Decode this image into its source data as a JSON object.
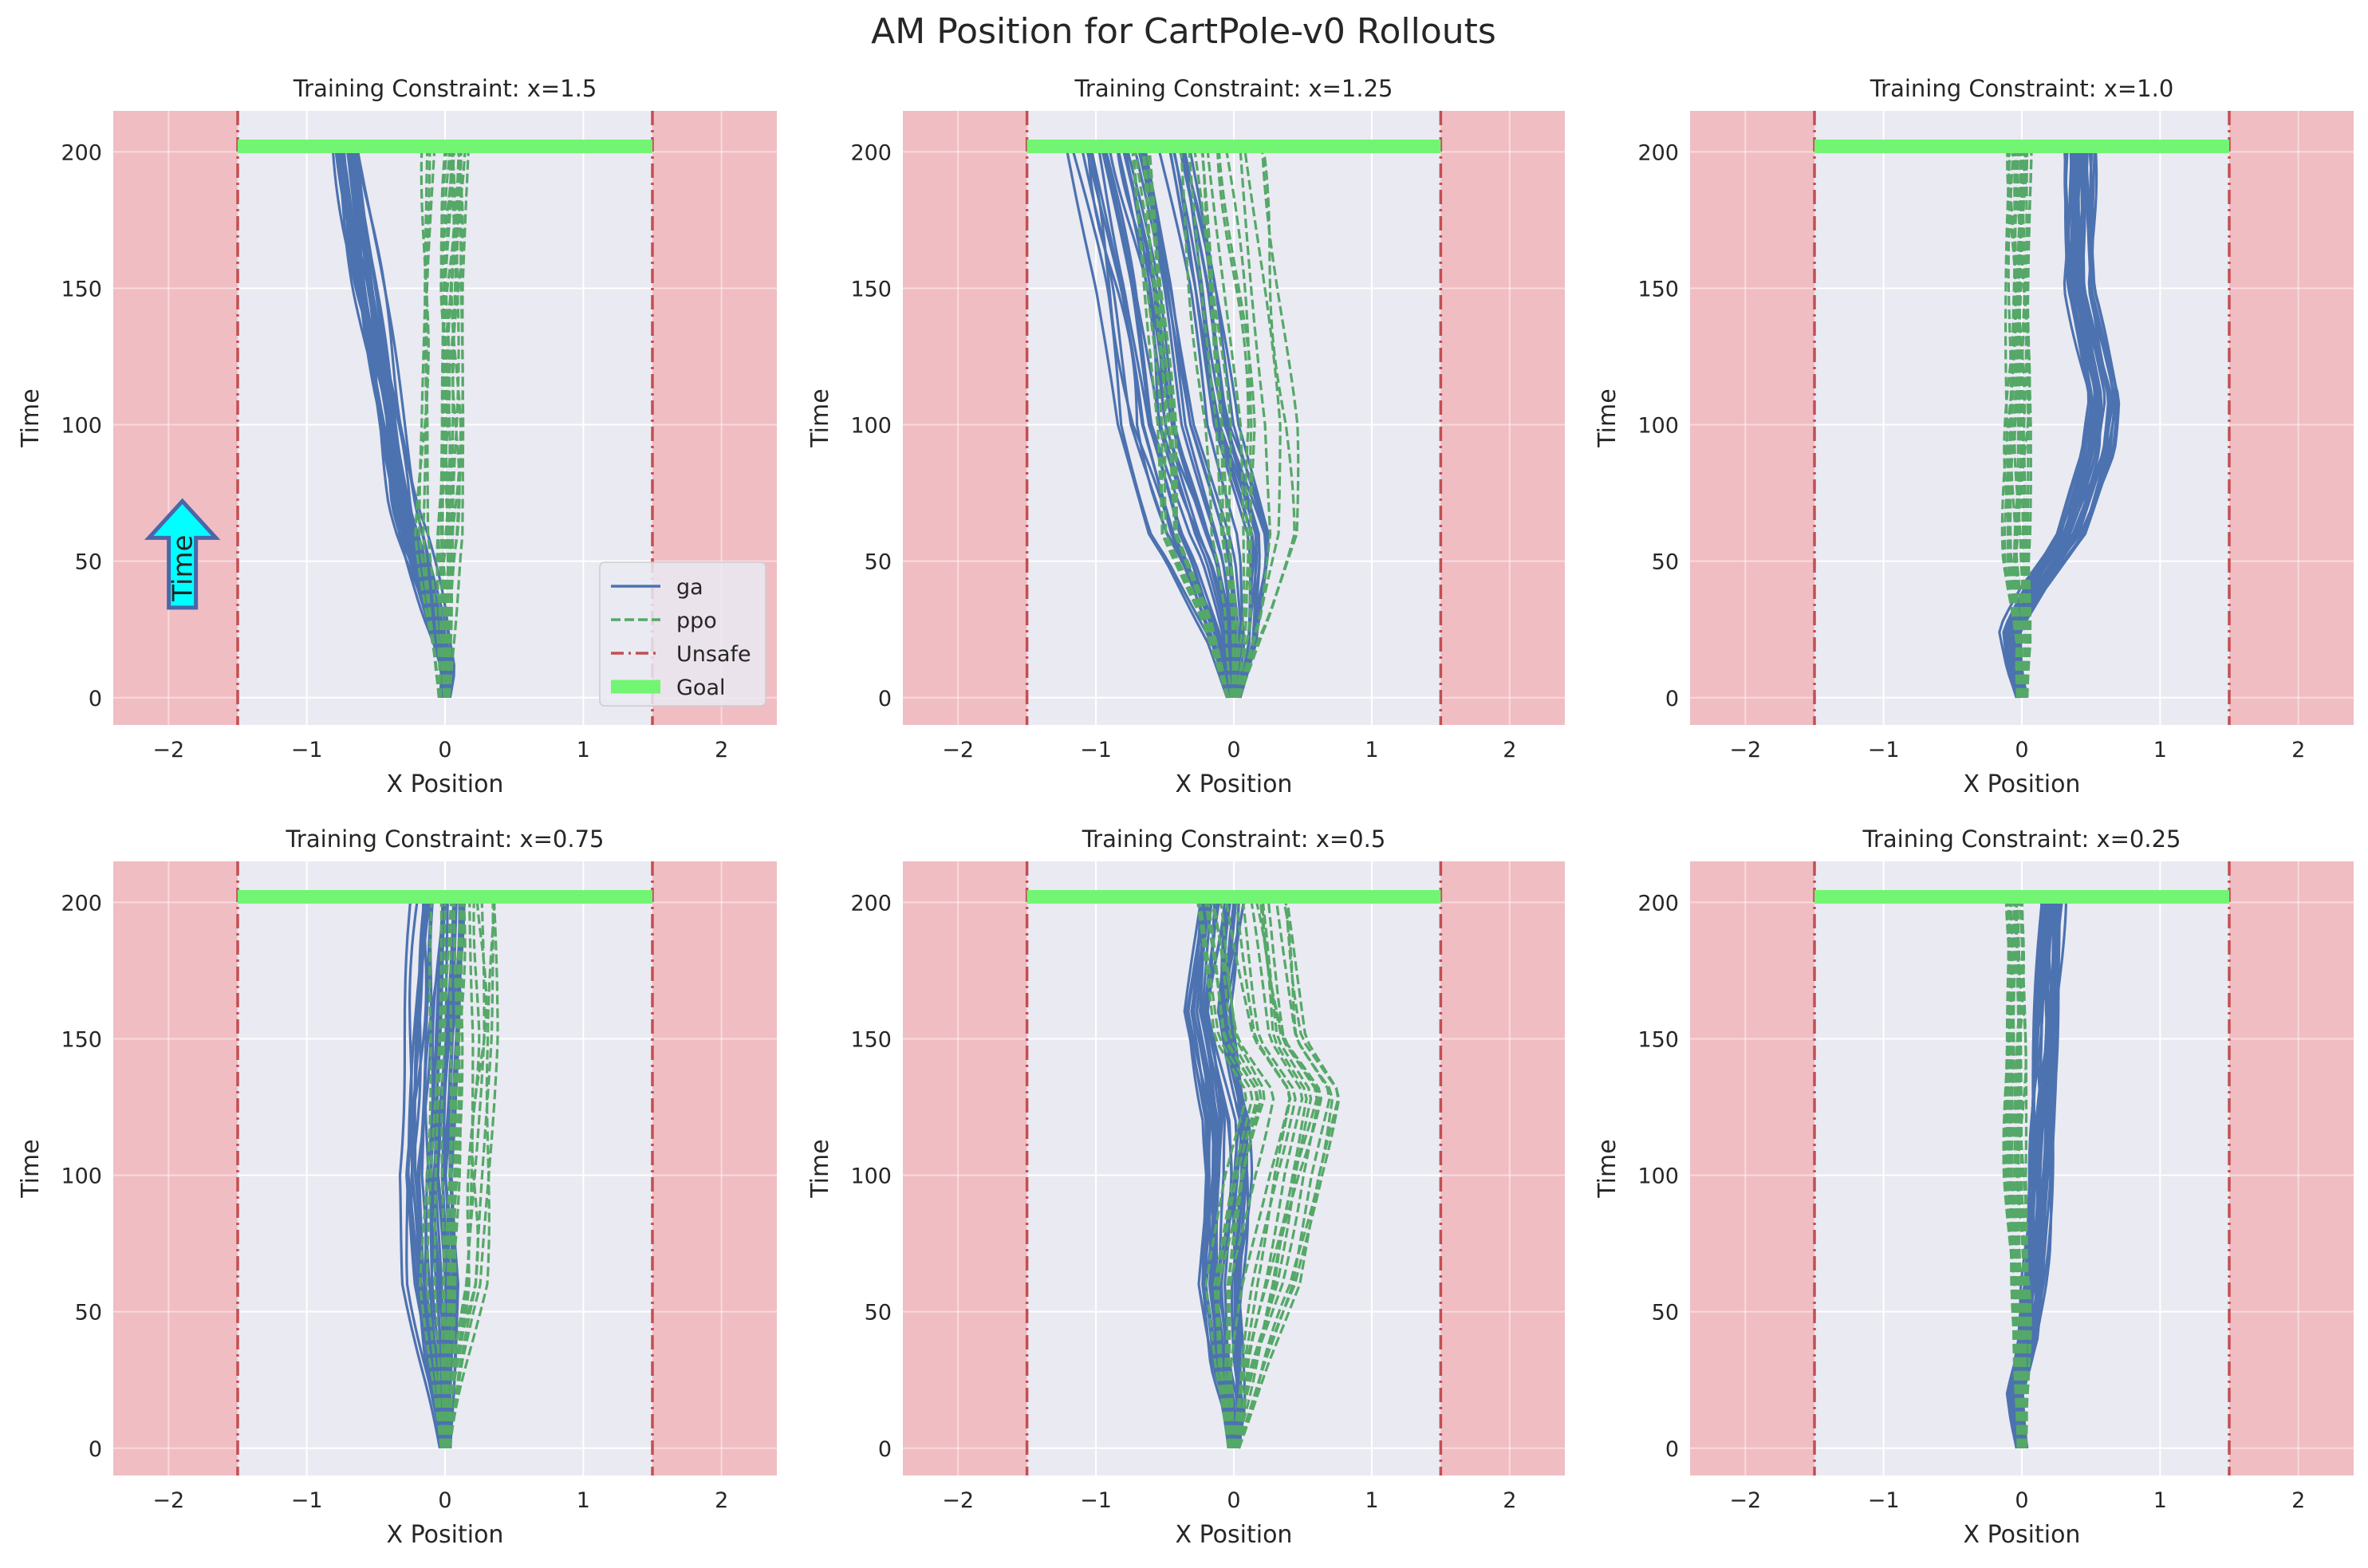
{
  "figure": {
    "title": "AM Position for CartPole-v0 Rollouts",
    "annotation": "Time"
  },
  "legend": {
    "placement": "lower-right of first subplot",
    "entries": [
      {
        "key": "ga",
        "label": "ga",
        "color": "#4c72b0",
        "style": "solid"
      },
      {
        "key": "ppo",
        "label": "ppo",
        "color": "#55a868",
        "style": "dashed"
      },
      {
        "key": "unsafe",
        "label": "Unsafe",
        "color": "#c44e52",
        "style": "dashdot"
      },
      {
        "key": "goal",
        "label": "Goal",
        "color": "#72f572",
        "style": "thick"
      }
    ]
  },
  "colors": {
    "ga": "#4c72b0",
    "ppo": "#55a868",
    "unsafe_line": "#c44e52",
    "unsafe_fill": "#f0b8bf",
    "goal": "#72f572",
    "axes_bg": "#eaeaf2",
    "grid": "#ffffff",
    "arrow_fill": "#00ffff",
    "arrow_edge": "#4a66a8"
  },
  "chart_data": [
    {
      "type": "line",
      "title": "Training Constraint: x=1.5",
      "xlabel": "X Position",
      "ylabel": "Time",
      "xlim": [
        -2.4,
        2.4
      ],
      "ylim": [
        -10,
        215
      ],
      "grid": true,
      "xticks": [
        -2,
        -1,
        0,
        1,
        2
      ],
      "xticklabels": [
        "−2",
        "−1",
        "0",
        "1",
        "2"
      ],
      "yticks": [
        0,
        50,
        100,
        150,
        200
      ],
      "yticklabels": [
        "0",
        "50",
        "100",
        "150",
        "200"
      ],
      "unsafe_bounds": [
        -1.5,
        1.5
      ],
      "goal": {
        "y": 202,
        "x_range": [
          -1.5,
          1.5
        ]
      },
      "ga": {
        "runs": 30,
        "centerline": [
          [
            0,
            0
          ],
          [
            10,
            0.02
          ],
          [
            20,
            -0.02
          ],
          [
            40,
            -0.12
          ],
          [
            70,
            -0.28
          ],
          [
            100,
            -0.38
          ],
          [
            150,
            -0.55
          ],
          [
            200,
            -0.7
          ]
        ],
        "spread": [
          0.04,
          0.1
        ]
      },
      "ppo": {
        "runs": 20,
        "centerline": [
          [
            0,
            0
          ],
          [
            20,
            0
          ],
          [
            50,
            0
          ],
          [
            100,
            0.02
          ],
          [
            150,
            0.02
          ],
          [
            200,
            0.05
          ]
        ],
        "spread": [
          0.05,
          0.2
        ]
      }
    },
    {
      "type": "line",
      "title": "Training Constraint: x=1.25",
      "xlabel": "X Position",
      "ylabel": "Time",
      "xlim": [
        -2.4,
        2.4
      ],
      "ylim": [
        -10,
        215
      ],
      "grid": true,
      "xticks": [
        -2,
        -1,
        0,
        1,
        2
      ],
      "xticklabels": [
        "−2",
        "−1",
        "0",
        "1",
        "2"
      ],
      "yticks": [
        0,
        50,
        100,
        150,
        200
      ],
      "yticklabels": [
        "0",
        "50",
        "100",
        "150",
        "200"
      ],
      "unsafe_bounds": [
        -1.5,
        1.5
      ],
      "goal": {
        "y": 202,
        "x_range": [
          -1.5,
          1.5
        ]
      },
      "ga": {
        "runs": 35,
        "centerline": [
          [
            0,
            0
          ],
          [
            20,
            0
          ],
          [
            50,
            -0.1
          ],
          [
            100,
            -0.4
          ],
          [
            150,
            -0.55
          ],
          [
            200,
            -0.75
          ]
        ],
        "spread": [
          0.05,
          0.45
        ]
      },
      "ppo": {
        "runs": 20,
        "centerline": [
          [
            0,
            0
          ],
          [
            30,
            0.05
          ],
          [
            60,
            0.02
          ],
          [
            100,
            0
          ],
          [
            150,
            -0.1
          ],
          [
            200,
            -0.2
          ]
        ],
        "spread": [
          0.05,
          0.55
        ]
      }
    },
    {
      "type": "line",
      "title": "Training Constraint: x=1.0",
      "xlabel": "X Position",
      "ylabel": "Time",
      "xlim": [
        -2.4,
        2.4
      ],
      "ylim": [
        -10,
        215
      ],
      "grid": true,
      "xticks": [
        -2,
        -1,
        0,
        1,
        2
      ],
      "xticklabels": [
        "−2",
        "−1",
        "0",
        "1",
        "2"
      ],
      "yticks": [
        0,
        50,
        100,
        150,
        200
      ],
      "yticklabels": [
        "0",
        "50",
        "100",
        "150",
        "200"
      ],
      "unsafe_bounds": [
        -1.5,
        1.5
      ],
      "goal": {
        "y": 202,
        "x_range": [
          -1.5,
          1.5
        ]
      },
      "ga": {
        "runs": 30,
        "centerline": [
          [
            0,
            0
          ],
          [
            10,
            -0.05
          ],
          [
            25,
            -0.08
          ],
          [
            40,
            0.08
          ],
          [
            60,
            0.35
          ],
          [
            90,
            0.55
          ],
          [
            110,
            0.6
          ],
          [
            150,
            0.42
          ],
          [
            200,
            0.42
          ]
        ],
        "spread": [
          0.04,
          0.1
        ]
      },
      "ppo": {
        "runs": 20,
        "centerline": [
          [
            0,
            0
          ],
          [
            20,
            0
          ],
          [
            50,
            -0.05
          ],
          [
            100,
            -0.03
          ],
          [
            150,
            -0.02
          ],
          [
            200,
            -0.01
          ]
        ],
        "spread": [
          0.04,
          0.08
        ]
      }
    },
    {
      "type": "line",
      "title": "Training Constraint: x=0.75",
      "xlabel": "X Position",
      "ylabel": "Time",
      "xlim": [
        -2.4,
        2.4
      ],
      "ylim": [
        -10,
        215
      ],
      "grid": true,
      "xticks": [
        -2,
        -1,
        0,
        1,
        2
      ],
      "xticklabels": [
        "−2",
        "−1",
        "0",
        "1",
        "2"
      ],
      "yticks": [
        0,
        50,
        100,
        150,
        200
      ],
      "yticklabels": [
        "0",
        "50",
        "100",
        "150",
        "200"
      ],
      "unsafe_bounds": [
        -1.5,
        1.5
      ],
      "goal": {
        "y": 202,
        "x_range": [
          -1.5,
          1.5
        ]
      },
      "ga": {
        "runs": 30,
        "centerline": [
          [
            0,
            0
          ],
          [
            30,
            -0.05
          ],
          [
            60,
            -0.1
          ],
          [
            100,
            -0.15
          ],
          [
            150,
            -0.1
          ],
          [
            200,
            -0.05
          ]
        ],
        "spread": [
          0.04,
          0.2
        ]
      },
      "ppo": {
        "runs": 20,
        "centerline": [
          [
            0,
            0
          ],
          [
            30,
            0.02
          ],
          [
            60,
            0.05
          ],
          [
            100,
            0.08
          ],
          [
            150,
            0.12
          ],
          [
            200,
            0.12
          ]
        ],
        "spread": [
          0.04,
          0.3
        ]
      }
    },
    {
      "type": "line",
      "title": "Training Constraint: x=0.5",
      "xlabel": "X Position",
      "ylabel": "Time",
      "xlim": [
        -2.4,
        2.4
      ],
      "ylim": [
        -10,
        215
      ],
      "grid": true,
      "xticks": [
        -2,
        -1,
        0,
        1,
        2
      ],
      "xticklabels": [
        "−2",
        "−1",
        "0",
        "1",
        "2"
      ],
      "yticks": [
        0,
        50,
        100,
        150,
        200
      ],
      "yticklabels": [
        "0",
        "50",
        "100",
        "150",
        "200"
      ],
      "unsafe_bounds": [
        -1.5,
        1.5
      ],
      "goal": {
        "y": 202,
        "x_range": [
          -1.5,
          1.5
        ]
      },
      "ga": {
        "runs": 30,
        "centerline": [
          [
            0,
            0
          ],
          [
            15,
            0
          ],
          [
            30,
            -0.05
          ],
          [
            60,
            -0.1
          ],
          [
            100,
            -0.05
          ],
          [
            120,
            -0.05
          ],
          [
            160,
            -0.2
          ],
          [
            200,
            -0.1
          ]
        ],
        "spread": [
          0.04,
          0.15
        ]
      },
      "ppo": {
        "runs": 20,
        "centerline": [
          [
            0,
            0
          ],
          [
            30,
            0.05
          ],
          [
            60,
            0.15
          ],
          [
            100,
            0.3
          ],
          [
            130,
            0.45
          ],
          [
            150,
            0.2
          ],
          [
            200,
            0.05
          ]
        ],
        "spread": [
          0.04,
          0.35
        ]
      }
    },
    {
      "type": "line",
      "title": "Training Constraint: x=0.25",
      "xlabel": "X Position",
      "ylabel": "Time",
      "xlim": [
        -2.4,
        2.4
      ],
      "ylim": [
        -10,
        215
      ],
      "grid": true,
      "xticks": [
        -2,
        -1,
        0,
        1,
        2
      ],
      "xticklabels": [
        "−2",
        "−1",
        "0",
        "1",
        "2"
      ],
      "yticks": [
        0,
        50,
        100,
        150,
        200
      ],
      "yticklabels": [
        "0",
        "50",
        "100",
        "150",
        "200"
      ],
      "unsafe_bounds": [
        -1.5,
        1.5
      ],
      "goal": {
        "y": 202,
        "x_range": [
          -1.5,
          1.5
        ]
      },
      "ga": {
        "runs": 30,
        "centerline": [
          [
            0,
            0
          ],
          [
            10,
            -0.03
          ],
          [
            20,
            -0.05
          ],
          [
            40,
            0.05
          ],
          [
            70,
            0.1
          ],
          [
            100,
            0.13
          ],
          [
            150,
            0.18
          ],
          [
            200,
            0.22
          ]
        ],
        "spread": [
          0.04,
          0.07
        ]
      },
      "ppo": {
        "runs": 20,
        "centerline": [
          [
            0,
            0
          ],
          [
            30,
            0
          ],
          [
            60,
            -0.02
          ],
          [
            100,
            -0.05
          ],
          [
            150,
            -0.05
          ],
          [
            200,
            -0.06
          ]
        ],
        "spread": [
          0.03,
          0.05
        ]
      }
    }
  ]
}
